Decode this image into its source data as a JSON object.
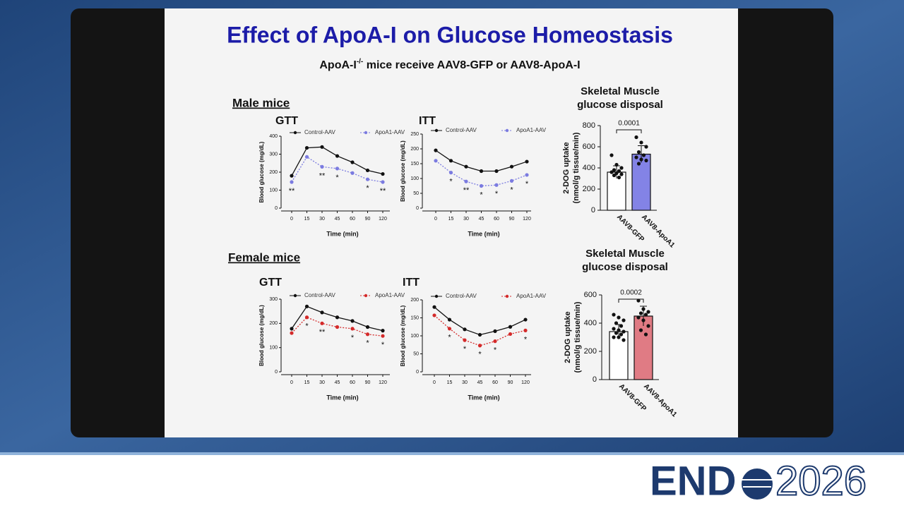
{
  "slide": {
    "title": "Effect of ApoA-I on Glucose Homeostasis",
    "subtitle_main": "ApoA-I",
    "subtitle_sup": "-/-",
    "subtitle_rest": " mice receive AAV8-GFP or AAV8-ApoA-I",
    "male_heading": "Male mice",
    "female_heading": "Female mice"
  },
  "logo": {
    "left": "END",
    "right": "2026"
  },
  "chart_data": [
    {
      "type": "line",
      "title": "GTT",
      "x_label": "Time (min)",
      "y_label": "Blood glucose (mg/dL)",
      "categories": [
        "0",
        "15",
        "30",
        "45",
        "60",
        "90",
        "120"
      ],
      "ylim": [
        0,
        400
      ],
      "yticks": [
        0,
        100,
        200,
        300,
        400
      ],
      "series": [
        {
          "name": "Control-AAV",
          "color": "#111111",
          "values": [
            180,
            335,
            340,
            290,
            255,
            210,
            190
          ]
        },
        {
          "name": "ApoA1-AAV",
          "color": "#7b7be0",
          "values": [
            145,
            285,
            230,
            220,
            195,
            160,
            145
          ]
        }
      ],
      "annotations": [
        "**",
        null,
        "**",
        "*",
        null,
        "*",
        "**"
      ]
    },
    {
      "type": "line",
      "title": "ITT",
      "x_label": "Time (min)",
      "y_label": "Blood glucose (mg/dL)",
      "categories": [
        "0",
        "15",
        "30",
        "45",
        "60",
        "90",
        "120"
      ],
      "ylim": [
        0,
        250
      ],
      "yticks": [
        0,
        50,
        100,
        150,
        200,
        250
      ],
      "series": [
        {
          "name": "Control-AAV",
          "color": "#111111",
          "values": [
            195,
            160,
            140,
            125,
            125,
            140,
            157
          ]
        },
        {
          "name": "ApoA1-AAV",
          "color": "#7b7be0",
          "values": [
            160,
            120,
            90,
            75,
            78,
            92,
            112
          ]
        }
      ],
      "annotations": [
        null,
        "*",
        "**",
        "*",
        "*",
        "*",
        "*"
      ]
    },
    {
      "type": "bar",
      "title": [
        "Skeletal Muscle",
        "glucose disposal"
      ],
      "y_label": [
        "2-DOG uptake",
        "(nmol/g tissue/min)"
      ],
      "categories": [
        "AAV8-GFP",
        "AAV8-ApoA1"
      ],
      "values": [
        360,
        530
      ],
      "errors": [
        60,
        80
      ],
      "colors": [
        "#ffffff",
        "#8383e6"
      ],
      "points": [
        [
          520,
          430,
          400,
          380,
          370,
          360,
          350,
          340,
          330,
          310
        ],
        [
          690,
          640,
          600,
          550,
          520,
          500,
          480,
          470,
          440
        ]
      ],
      "ylim": [
        0,
        800
      ],
      "yticks": [
        0,
        200,
        400,
        600,
        800
      ],
      "p_value": "0.0001"
    },
    {
      "type": "line",
      "title": "GTT",
      "x_label": "Time (min)",
      "y_label": "Blood glucose (mg/dL)",
      "categories": [
        "0",
        "15",
        "30",
        "45",
        "60",
        "90",
        "120"
      ],
      "ylim": [
        0,
        300
      ],
      "yticks": [
        0,
        100,
        200,
        300
      ],
      "series": [
        {
          "name": "Control-AAV",
          "color": "#111111",
          "values": [
            178,
            270,
            245,
            225,
            210,
            185,
            170
          ]
        },
        {
          "name": "ApoA1-AAV",
          "color": "#d42a2a",
          "values": [
            160,
            225,
            200,
            185,
            178,
            155,
            148
          ]
        }
      ],
      "annotations": [
        null,
        "*",
        "**",
        null,
        "*",
        "*",
        "*"
      ]
    },
    {
      "type": "line",
      "title": "ITT",
      "x_label": "Time (min)",
      "y_label": "Blood glucose (mg/dL)",
      "categories": [
        "0",
        "15",
        "30",
        "45",
        "60",
        "90",
        "120"
      ],
      "ylim": [
        0,
        200
      ],
      "yticks": [
        0,
        50,
        100,
        150,
        200
      ],
      "series": [
        {
          "name": "Control-AAV",
          "color": "#111111",
          "values": [
            180,
            145,
            118,
            103,
            113,
            125,
            145
          ]
        },
        {
          "name": "ApoA1-AAV",
          "color": "#d42a2a",
          "values": [
            157,
            120,
            88,
            73,
            85,
            105,
            115
          ]
        }
      ],
      "annotations": [
        null,
        "*",
        "*",
        "*",
        "*",
        null,
        "*"
      ]
    },
    {
      "type": "bar",
      "title": [
        "Skeletal Muscle",
        "glucose disposal"
      ],
      "y_label": [
        "2-DOG uptake",
        "(nmol/g tissue/min)"
      ],
      "categories": [
        "AAV8-GFP",
        "AAV8-ApoA1"
      ],
      "values": [
        340,
        450
      ],
      "errors": [
        50,
        70
      ],
      "colors": [
        "#ffffff",
        "#e07b84"
      ],
      "points": [
        [
          460,
          440,
          420,
          400,
          380,
          360,
          350,
          340,
          330,
          320,
          300,
          300,
          280
        ],
        [
          560,
          500,
          480,
          470,
          460,
          440,
          420,
          380,
          350,
          320
        ]
      ],
      "ylim": [
        0,
        600
      ],
      "yticks": [
        0,
        200,
        400,
        600
      ],
      "p_value": "0.0002"
    }
  ]
}
